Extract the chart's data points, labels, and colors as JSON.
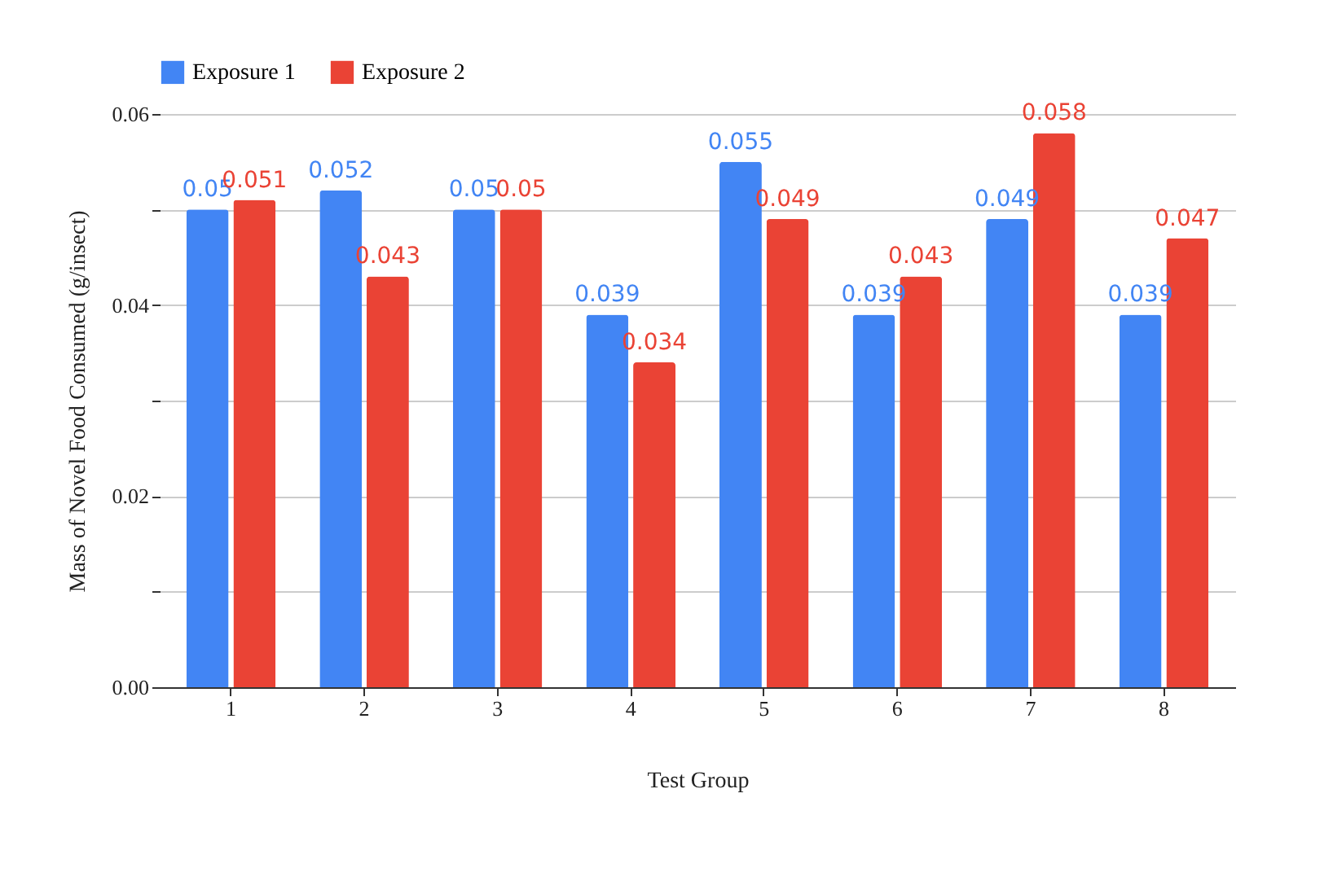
{
  "chart_data": {
    "type": "bar",
    "xlabel": "Test Group",
    "ylabel": "Mass of Novel Food Consumed (g/insect)",
    "categories": [
      "1",
      "2",
      "3",
      "4",
      "5",
      "6",
      "7",
      "8"
    ],
    "series": [
      {
        "name": "Exposure 1",
        "color": "#4285f4",
        "values": [
          0.05,
          0.052,
          0.05,
          0.039,
          0.055,
          0.039,
          0.049,
          0.039
        ],
        "value_labels": [
          "0.05",
          "0.052",
          "0.05",
          "0.039",
          "0.055",
          "0.039",
          "0.049",
          "0.039"
        ]
      },
      {
        "name": "Exposure 2",
        "color": "#ea4335",
        "values": [
          0.051,
          0.043,
          0.05,
          0.034,
          0.049,
          0.043,
          0.058,
          0.047
        ],
        "value_labels": [
          "0.051",
          "0.043",
          "0.05",
          "0.034",
          "0.049",
          "0.043",
          "0.058",
          "0.047"
        ]
      }
    ],
    "ylim": [
      0,
      0.06
    ],
    "yticks": [
      {
        "value": 0,
        "label": "0.00"
      },
      {
        "value": 0.01,
        "label": null
      },
      {
        "value": 0.02,
        "label": "0.02"
      },
      {
        "value": 0.03,
        "label": null
      },
      {
        "value": 0.04,
        "label": "0.04"
      },
      {
        "value": 0.05,
        "label": null
      },
      {
        "value": 0.06,
        "label": "0.06"
      }
    ],
    "grid": "y",
    "legend": "top"
  }
}
